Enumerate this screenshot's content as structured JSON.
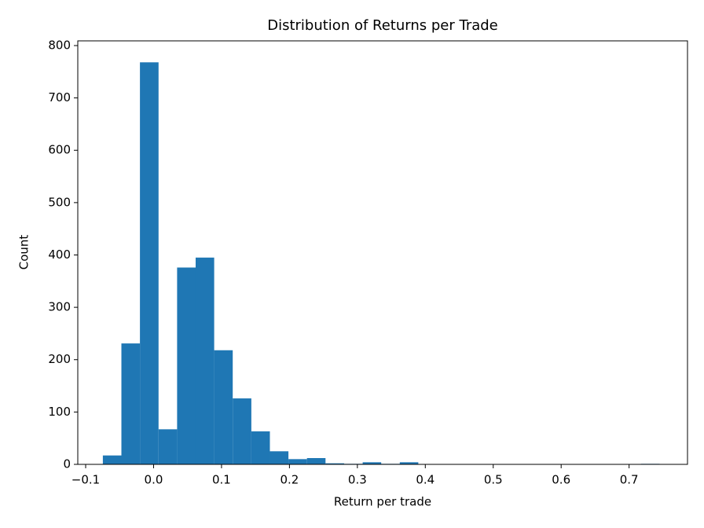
{
  "chart_data": {
    "type": "histogram",
    "title": "Distribution of Returns per Trade",
    "x_label": "Return per trade",
    "y_label": "Count",
    "color": "#1f77b4",
    "bins": [
      -0.0747,
      -0.0474,
      -0.0201,
      0.0073,
      0.0346,
      0.0619,
      0.0892,
      0.1165,
      0.1439,
      0.1712,
      0.1985,
      0.2258,
      0.2531,
      0.2805,
      0.3078,
      0.3351,
      0.3624,
      0.3897,
      0.4171,
      0.4444,
      0.4717,
      0.499,
      0.5263,
      0.5537,
      0.581,
      0.6083,
      0.6356,
      0.6629,
      0.6903,
      0.7176,
      0.7449
    ],
    "counts": [
      17,
      231,
      768,
      67,
      376,
      395,
      218,
      126,
      63,
      25,
      10,
      12,
      2,
      1,
      4,
      1,
      4,
      0,
      0,
      0,
      0,
      0,
      0,
      0,
      0,
      0,
      0,
      0,
      0,
      1
    ],
    "xlim": [
      -0.1116,
      0.786
    ],
    "ylim": [
      0,
      809
    ],
    "xticks": [
      {
        "value": -0.1,
        "label": "−0.1"
      },
      {
        "value": 0,
        "label": "0.0"
      },
      {
        "value": 0.1,
        "label": "0.1"
      },
      {
        "value": 0.2,
        "label": "0.2"
      },
      {
        "value": 0.3,
        "label": "0.3"
      },
      {
        "value": 0.4,
        "label": "0.4"
      },
      {
        "value": 0.5,
        "label": "0.5"
      },
      {
        "value": 0.6,
        "label": "0.6"
      },
      {
        "value": 0.7,
        "label": "0.7"
      }
    ],
    "yticks": [
      0,
      100,
      200,
      300,
      400,
      500,
      600,
      700,
      800
    ]
  }
}
